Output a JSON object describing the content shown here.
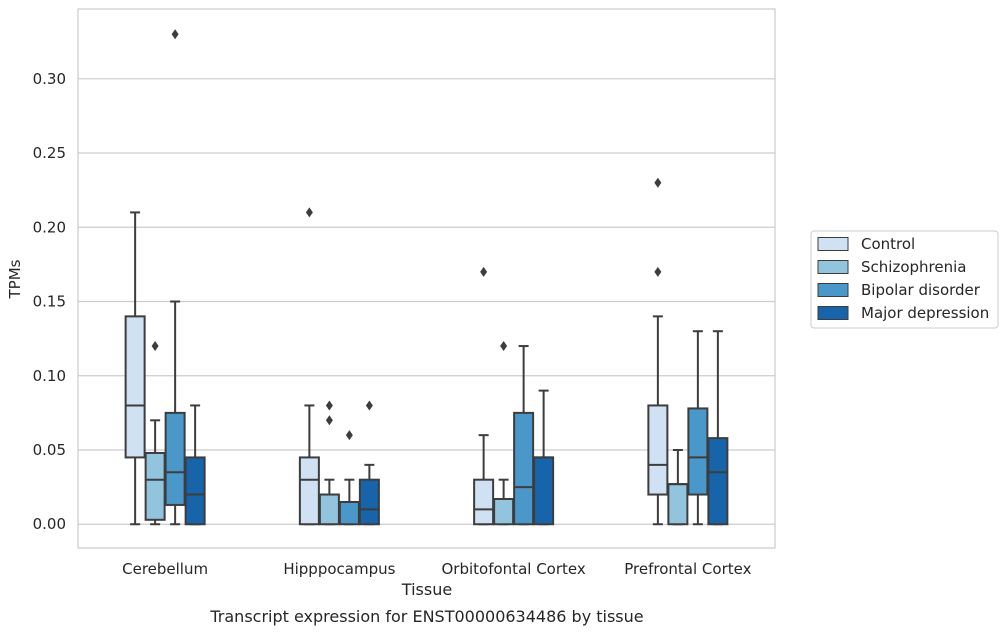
{
  "chart_data": {
    "type": "boxplot",
    "title": "",
    "caption": "Transcript expression for ENST00000634486 by tissue",
    "xlabel": "Tissue",
    "ylabel": "TPMs",
    "ylim": [
      -0.016,
      0.347
    ],
    "yticks": [
      "0.00",
      "0.05",
      "0.10",
      "0.15",
      "0.20",
      "0.25",
      "0.30"
    ],
    "ytick_values": [
      0,
      0.05,
      0.1,
      0.15,
      0.2,
      0.25,
      0.3
    ],
    "grid": true,
    "legend_position": "right",
    "categories": [
      "Cerebellum",
      "Hipppocampus",
      "Orbitofontal Cortex",
      "Prefrontal Cortex"
    ],
    "series": [
      {
        "name": "Control",
        "color": "#cfe1f2",
        "boxes": [
          {
            "whislo": 0,
            "q1": 0.045,
            "med": 0.08,
            "q3": 0.14,
            "whishi": 0.21,
            "fliers": []
          },
          {
            "whislo": 0,
            "q1": 0,
            "med": 0.03,
            "q3": 0.045,
            "whishi": 0.08,
            "fliers": [
              0.21
            ]
          },
          {
            "whislo": 0,
            "q1": 0,
            "med": 0.01,
            "q3": 0.03,
            "whishi": 0.06,
            "fliers": [
              0.17
            ]
          },
          {
            "whislo": 0,
            "q1": 0.02,
            "med": 0.04,
            "q3": 0.08,
            "whishi": 0.14,
            "fliers": [
              0.17,
              0.23
            ]
          }
        ]
      },
      {
        "name": "Schizophrenia",
        "color": "#93c4de",
        "boxes": [
          {
            "whislo": 0,
            "q1": 0.003,
            "med": 0.03,
            "q3": 0.048,
            "whishi": 0.07,
            "fliers": [
              0.12
            ]
          },
          {
            "whislo": 0,
            "q1": 0,
            "med": 0.02,
            "q3": 0.02,
            "whishi": 0.03,
            "fliers": [
              0.07,
              0.08
            ]
          },
          {
            "whislo": 0,
            "q1": 0,
            "med": 0.017,
            "q3": 0.017,
            "whishi": 0.03,
            "fliers": [
              0.12
            ]
          },
          {
            "whislo": 0,
            "q1": 0,
            "med": 0.027,
            "q3": 0.027,
            "whishi": 0.05,
            "fliers": []
          }
        ]
      },
      {
        "name": "Bipolar disorder",
        "color": "#4a98c9",
        "boxes": [
          {
            "whislo": 0,
            "q1": 0.013,
            "med": 0.035,
            "q3": 0.075,
            "whishi": 0.15,
            "fliers": [
              0.33
            ]
          },
          {
            "whislo": 0,
            "q1": 0,
            "med": 0.015,
            "q3": 0.015,
            "whishi": 0.03,
            "fliers": [
              0.06
            ]
          },
          {
            "whislo": 0,
            "q1": 0,
            "med": 0.025,
            "q3": 0.075,
            "whishi": 0.12,
            "fliers": []
          },
          {
            "whislo": 0,
            "q1": 0.02,
            "med": 0.045,
            "q3": 0.078,
            "whishi": 0.13,
            "fliers": []
          }
        ]
      },
      {
        "name": "Major depression",
        "color": "#1764ab",
        "boxes": [
          {
            "whislo": 0,
            "q1": 0,
            "med": 0.02,
            "q3": 0.045,
            "whishi": 0.08,
            "fliers": []
          },
          {
            "whislo": 0,
            "q1": 0,
            "med": 0.01,
            "q3": 0.03,
            "whishi": 0.04,
            "fliers": [
              0.08
            ]
          },
          {
            "whislo": 0,
            "q1": 0,
            "med": 0.045,
            "q3": 0.045,
            "whishi": 0.09,
            "fliers": []
          },
          {
            "whislo": 0,
            "q1": 0,
            "med": 0.035,
            "q3": 0.058,
            "whishi": 0.13,
            "fliers": []
          }
        ]
      }
    ]
  }
}
